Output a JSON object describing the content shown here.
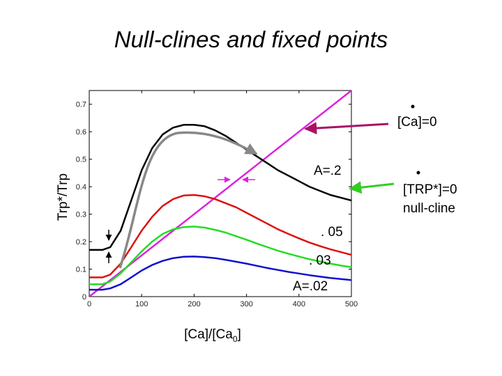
{
  "title": "Null-clines and fixed points",
  "chart_data": {
    "type": "line",
    "xlabel": "[Ca]/[Ca",
    "xlabel_sub": "0",
    "xlabel_close": "]",
    "ylabel": "Trp*/Trp",
    "xlim": [
      0,
      500
    ],
    "ylim": [
      0,
      0.75
    ],
    "xticks": [
      "0",
      "100",
      "200",
      "300",
      "400",
      "500"
    ],
    "yticks": [
      "0",
      "0.1",
      "0.2",
      "0.3",
      "0.4",
      "0.5",
      "0.6",
      "0.7"
    ],
    "xtick_values": [
      0,
      100,
      200,
      300,
      400,
      500
    ],
    "ytick_values": [
      0,
      0.1,
      0.2,
      0.3,
      0.4,
      0.5,
      0.6,
      0.7
    ],
    "series": [
      {
        "color": "#dd22dd",
        "x": [
          0,
          500
        ],
        "y": [
          0,
          0.75
        ]
      },
      {
        "color": "#000000",
        "x": [
          0,
          25,
          40,
          60,
          80,
          100,
          120,
          140,
          160,
          180,
          200,
          220,
          240,
          260,
          280,
          300,
          320,
          340,
          360,
          380,
          400,
          420,
          440,
          460,
          480,
          500
        ],
        "y": [
          0.17,
          0.17,
          0.18,
          0.24,
          0.35,
          0.46,
          0.54,
          0.59,
          0.615,
          0.625,
          0.625,
          0.62,
          0.605,
          0.585,
          0.56,
          0.535,
          0.51,
          0.485,
          0.46,
          0.44,
          0.42,
          0.4,
          0.385,
          0.37,
          0.36,
          0.35
        ]
      },
      {
        "color": "#dd1111",
        "x": [
          0,
          25,
          40,
          60,
          80,
          100,
          120,
          140,
          160,
          180,
          200,
          220,
          240,
          260,
          280,
          300,
          320,
          340,
          360,
          380,
          400,
          420,
          440,
          460,
          480,
          500
        ],
        "y": [
          0.07,
          0.07,
          0.08,
          0.12,
          0.18,
          0.24,
          0.29,
          0.33,
          0.355,
          0.368,
          0.37,
          0.365,
          0.355,
          0.34,
          0.325,
          0.305,
          0.285,
          0.265,
          0.245,
          0.228,
          0.212,
          0.197,
          0.184,
          0.172,
          0.162,
          0.152
        ]
      },
      {
        "color": "#22dd22",
        "x": [
          0,
          25,
          40,
          60,
          80,
          100,
          120,
          140,
          160,
          180,
          200,
          220,
          240,
          260,
          280,
          300,
          320,
          340,
          360,
          380,
          400,
          420,
          440,
          460,
          480,
          500
        ],
        "y": [
          0.045,
          0.045,
          0.055,
          0.085,
          0.125,
          0.165,
          0.2,
          0.228,
          0.245,
          0.253,
          0.255,
          0.251,
          0.243,
          0.233,
          0.22,
          0.207,
          0.193,
          0.18,
          0.167,
          0.156,
          0.146,
          0.136,
          0.128,
          0.12,
          0.113,
          0.107
        ]
      },
      {
        "color": "#1111cc",
        "x": [
          0,
          25,
          40,
          60,
          80,
          100,
          120,
          140,
          160,
          180,
          200,
          220,
          240,
          260,
          280,
          300,
          320,
          340,
          360,
          380,
          400,
          420,
          440,
          460,
          480,
          500
        ],
        "y": [
          0.025,
          0.025,
          0.03,
          0.045,
          0.07,
          0.095,
          0.115,
          0.13,
          0.14,
          0.145,
          0.146,
          0.144,
          0.14,
          0.134,
          0.127,
          0.12,
          0.112,
          0.104,
          0.097,
          0.09,
          0.084,
          0.078,
          0.073,
          0.068,
          0.064,
          0.06
        ]
      }
    ],
    "annotations": {
      "a_02": "A=.2",
      "a_05": ". 05",
      "a_03": ". 03",
      "a_002": "A=.02",
      "ca_null": "[Ca]=0",
      "trp_null_1": "[TRP*]=0",
      "trp_null_2": "null-cline"
    },
    "arrow_colors": {
      "ca_pointer": "#aa1166",
      "trp_pointer": "#33cc22",
      "trajectory": "#888888",
      "fixed_point_arrows": "#dd22dd",
      "vertical_arrows": "#000000"
    }
  }
}
